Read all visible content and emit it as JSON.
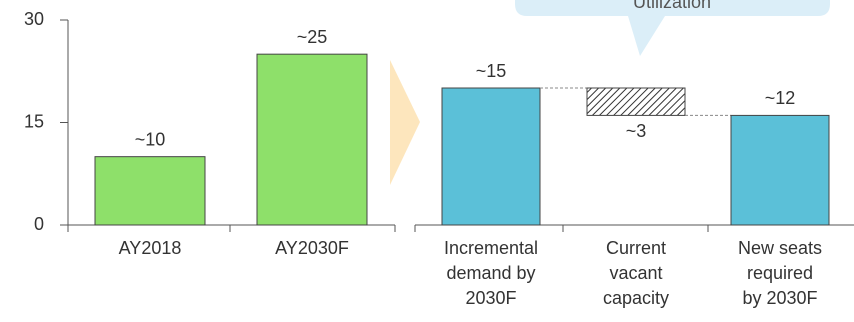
{
  "chart_data": [
    {
      "type": "bar",
      "categories": [
        "AY2018",
        "AY2030F"
      ],
      "values": [
        10,
        25
      ],
      "value_labels": [
        "~10",
        "~25"
      ],
      "color": "#8ee06a",
      "ylim": [
        0,
        30
      ],
      "yticks": [
        0,
        15,
        30
      ]
    },
    {
      "type": "waterfall",
      "annotation": "Utilization",
      "categories": [
        "Incremental\ndemand by\n2030F",
        "Current\nvacant\ncapacity",
        "New seats\nrequired\nby 2030F"
      ],
      "values": [
        15,
        3,
        12
      ],
      "value_labels": [
        "~15",
        "~3",
        "~12"
      ],
      "color": "#5bc0d8"
    }
  ]
}
